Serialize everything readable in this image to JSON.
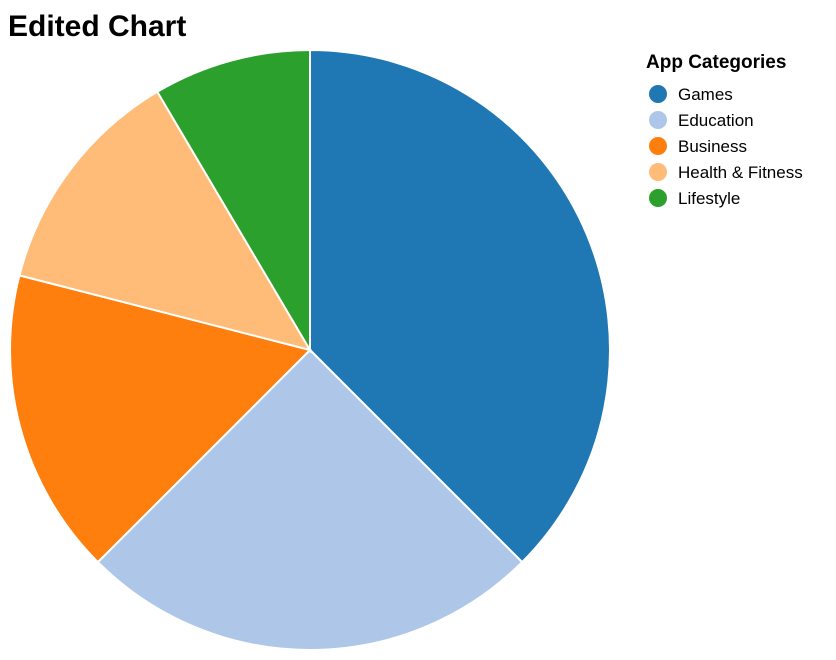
{
  "chart_data": {
    "type": "pie",
    "title": "Edited Chart",
    "legend": {
      "title": "App Categories",
      "placement": "top-right"
    },
    "categories": [
      "Games",
      "Education",
      "Business",
      "Health & Fitness",
      "Lifestyle"
    ],
    "values": [
      37.5,
      25,
      16.5,
      12.5,
      8.5
    ],
    "colors": [
      "#1f77b4",
      "#aec7e8",
      "#ff7f0e",
      "#ffbb78",
      "#2ca02c"
    ]
  }
}
